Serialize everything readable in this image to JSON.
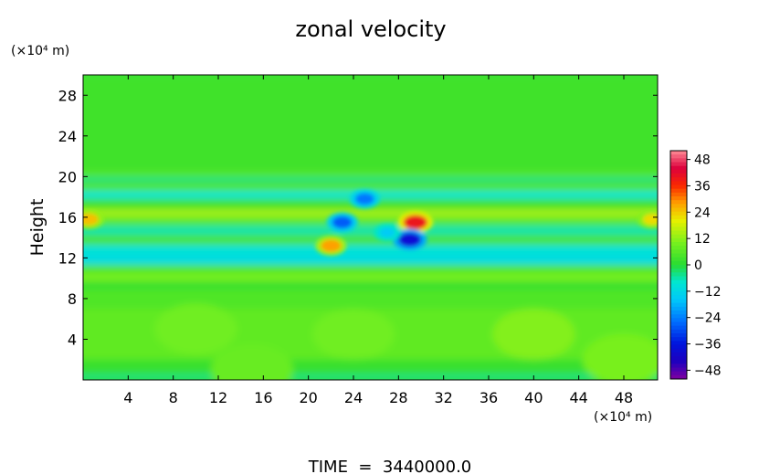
{
  "chart_data": {
    "type": "heatmap",
    "title": "zonal velocity",
    "ylabel": "Height",
    "y_unit": "(×10⁴ m)",
    "x_unit": "(×10⁴ m)",
    "footer": "TIME  =  3440000.0",
    "xlim": [
      0,
      51
    ],
    "ylim": [
      0,
      30
    ],
    "x_ticks": [
      4,
      8,
      12,
      16,
      20,
      24,
      28,
      32,
      36,
      40,
      44,
      48
    ],
    "y_ticks": [
      4,
      8,
      12,
      16,
      20,
      24,
      28
    ],
    "colorbar": {
      "min": -52,
      "max": 52,
      "ticks": [
        48,
        36,
        24,
        12,
        0,
        -12,
        -24,
        -36,
        -48
      ],
      "labels": [
        "48",
        "36",
        "24",
        "12",
        "0",
        "−12",
        "−24",
        "−36",
        "−48"
      ]
    },
    "background_value": 3,
    "features": [
      {
        "x": 29.5,
        "y": 15.5,
        "value": 40
      },
      {
        "x": 29.0,
        "y": 13.8,
        "value": -38
      },
      {
        "x": 23.0,
        "y": 15.5,
        "value": -28
      },
      {
        "x": 25.0,
        "y": 17.8,
        "value": -25
      },
      {
        "x": 22.0,
        "y": 13.2,
        "value": 28
      },
      {
        "x": 27.0,
        "y": 14.5,
        "value": -15
      },
      {
        "x": 0.5,
        "y": 15.8,
        "value": 25
      },
      {
        "x": 50.5,
        "y": 15.8,
        "value": 22
      }
    ]
  }
}
